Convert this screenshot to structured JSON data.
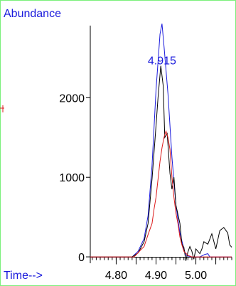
{
  "chart_data": {
    "type": "line",
    "ylabel": "Abundance",
    "xlabel": "Time-->",
    "xlim": [
      4.735,
      5.09
    ],
    "ylim": [
      -80,
      2960
    ],
    "xticks": [
      4.8,
      4.85,
      4.9,
      4.95,
      5.0,
      5.05
    ],
    "xtick_labels": [
      "4.80",
      "4.90",
      "5.00"
    ],
    "xtick_label_values": [
      4.8,
      4.9,
      5.0
    ],
    "yticks": [
      0,
      1000,
      2000
    ],
    "ytick_labels": [
      "0",
      "1000",
      "2000"
    ],
    "annotations": [
      {
        "text": "4.915",
        "x": 4.915,
        "y": 2420
      }
    ],
    "grid": false,
    "baseline": 0,
    "series": [
      {
        "color": "#1a1adc",
        "points": [
          [
            4.735,
            0
          ],
          [
            4.84,
            0
          ],
          [
            4.855,
            70
          ],
          [
            4.87,
            230
          ],
          [
            4.88,
            520
          ],
          [
            4.89,
            1150
          ],
          [
            4.9,
            2100
          ],
          [
            4.91,
            2800
          ],
          [
            4.915,
            2930
          ],
          [
            4.92,
            2650
          ],
          [
            4.93,
            2050
          ],
          [
            4.94,
            1250
          ],
          [
            4.95,
            650
          ],
          [
            4.96,
            300
          ],
          [
            4.97,
            100
          ],
          [
            4.975,
            20
          ],
          [
            4.98,
            10
          ],
          [
            4.99,
            0
          ],
          [
            5.01,
            0
          ],
          [
            5.022,
            30
          ],
          [
            5.03,
            40
          ],
          [
            5.035,
            0
          ],
          [
            5.09,
            0
          ]
        ]
      },
      {
        "color": "#000000",
        "points": [
          [
            4.735,
            0
          ],
          [
            4.84,
            0
          ],
          [
            4.855,
            50
          ],
          [
            4.87,
            190
          ],
          [
            4.88,
            420
          ],
          [
            4.89,
            980
          ],
          [
            4.9,
            1650
          ],
          [
            4.905,
            2000
          ],
          [
            4.912,
            2400
          ],
          [
            4.918,
            2150
          ],
          [
            4.922,
            1500
          ],
          [
            4.928,
            1550
          ],
          [
            4.935,
            1050
          ],
          [
            4.94,
            850
          ],
          [
            4.945,
            1000
          ],
          [
            4.95,
            650
          ],
          [
            4.96,
            420
          ],
          [
            4.965,
            160
          ],
          [
            4.97,
            120
          ],
          [
            4.975,
            -50
          ],
          [
            4.98,
            60
          ],
          [
            4.985,
            130
          ],
          [
            4.99,
            70
          ],
          [
            4.995,
            -30
          ],
          [
            5.0,
            100
          ],
          [
            5.01,
            40
          ],
          [
            5.015,
            100
          ],
          [
            5.02,
            190
          ],
          [
            5.03,
            160
          ],
          [
            5.04,
            290
          ],
          [
            5.05,
            100
          ],
          [
            5.06,
            330
          ],
          [
            5.07,
            370
          ],
          [
            5.08,
            300
          ],
          [
            5.085,
            150
          ],
          [
            5.09,
            120
          ]
        ]
      },
      {
        "color": "#dc1a1a",
        "points": [
          [
            4.735,
            0
          ],
          [
            4.845,
            0
          ],
          [
            4.86,
            80
          ],
          [
            4.87,
            130
          ],
          [
            4.88,
            280
          ],
          [
            4.89,
            420
          ],
          [
            4.895,
            600
          ],
          [
            4.9,
            750
          ],
          [
            4.91,
            1200
          ],
          [
            4.915,
            1370
          ],
          [
            4.92,
            1500
          ],
          [
            4.925,
            1580
          ],
          [
            4.93,
            1500
          ],
          [
            4.935,
            1350
          ],
          [
            4.94,
            1000
          ],
          [
            4.945,
            750
          ],
          [
            4.95,
            550
          ],
          [
            4.955,
            420
          ],
          [
            4.96,
            250
          ],
          [
            4.965,
            150
          ],
          [
            4.97,
            70
          ],
          [
            4.98,
            20
          ],
          [
            4.99,
            0
          ],
          [
            5.09,
            0
          ]
        ]
      }
    ]
  }
}
